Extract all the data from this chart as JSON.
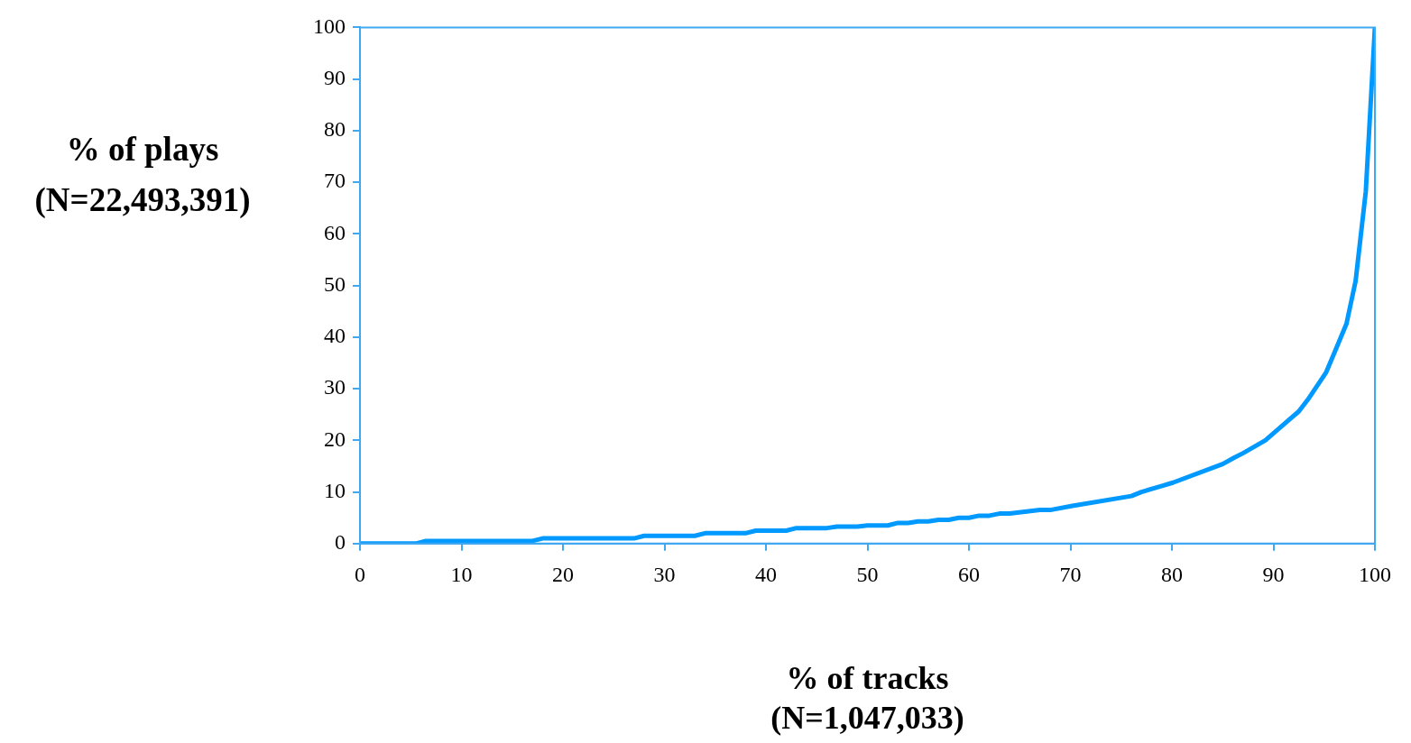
{
  "chart_data": {
    "type": "line",
    "xlabel": "% of tracks\n(N=1,047,033)",
    "ylabel": "% of plays\n(N=22,493,391)",
    "x": [
      0,
      5.5,
      6.5,
      17,
      18,
      27,
      28,
      33,
      34,
      38,
      39,
      42,
      43,
      46,
      47,
      49,
      50,
      52,
      53,
      54,
      55,
      56,
      57,
      58,
      59,
      60,
      61,
      62,
      63,
      64,
      67,
      68,
      70.2,
      76,
      77,
      79.1,
      80.1,
      85,
      86.1,
      87,
      89.2,
      91.2,
      92.5,
      93.4,
      95.2,
      96.1,
      97.2,
      98.1,
      99.1,
      100
    ],
    "series": [
      {
        "color": "#0099ff",
        "values": [
          0,
          0,
          0.5,
          0.5,
          1,
          1,
          1.5,
          1.5,
          2,
          2,
          2.5,
          2.5,
          3,
          3,
          3.3,
          3.3,
          3.5,
          3.5,
          4,
          4,
          4.3,
          4.3,
          4.6,
          4.6,
          5,
          5,
          5.4,
          5.4,
          5.8,
          5.8,
          6.5,
          6.5,
          7.3,
          9.2,
          10,
          11.2,
          11.8,
          15.4,
          16.6,
          17.5,
          20,
          23.4,
          25.6,
          27.9,
          33.2,
          37.4,
          42.6,
          50.9,
          68.2,
          100
        ]
      }
    ],
    "xlim": [
      0,
      100
    ],
    "xticks": [
      0,
      10,
      20,
      30,
      40,
      50,
      60,
      70,
      80,
      90,
      100
    ],
    "ylim": [
      0,
      100
    ],
    "yticks": [
      0,
      10,
      20,
      30,
      40,
      50,
      60,
      70,
      80,
      90,
      100
    ],
    "grid": false,
    "legend": false,
    "marker": "none",
    "line_style": "solid"
  }
}
